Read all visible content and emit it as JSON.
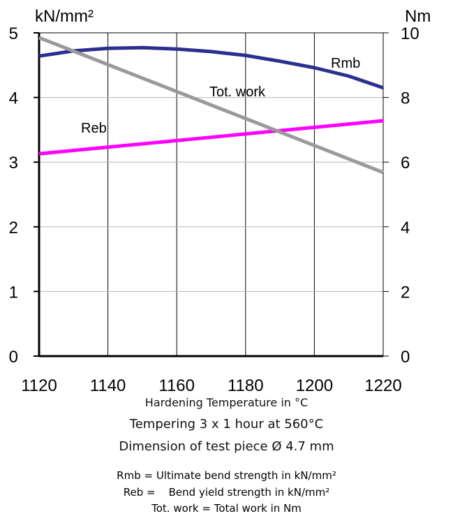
{
  "chart_data": {
    "type": "line",
    "xlabel": "Hardening Temperature in °C",
    "y_left_label": "kN/mm²",
    "y_right_label": "Nm",
    "xlim": [
      1120,
      1220
    ],
    "x_ticks": [
      1120,
      1140,
      1160,
      1180,
      1200,
      1220
    ],
    "ylim_left": [
      0,
      5
    ],
    "y_left_ticks": [
      0,
      1,
      2,
      3,
      4,
      5
    ],
    "ylim_right": [
      0,
      10
    ],
    "y_right_ticks": [
      0,
      2,
      4,
      6,
      8,
      10
    ],
    "grid": true,
    "series": [
      {
        "name": "Rmb",
        "axis": "left",
        "color": "#2b2f8f",
        "x": [
          1120,
          1130,
          1140,
          1150,
          1160,
          1170,
          1180,
          1190,
          1200,
          1210,
          1220
        ],
        "y": [
          4.64,
          4.72,
          4.76,
          4.77,
          4.75,
          4.71,
          4.65,
          4.56,
          4.46,
          4.33,
          4.15
        ]
      },
      {
        "name": "Reb",
        "axis": "left",
        "color": "#ff00ff",
        "x": [
          1120,
          1220
        ],
        "y": [
          3.13,
          3.64
        ]
      },
      {
        "name": "Tot. work",
        "axis": "right",
        "color": "#9a9a9a",
        "x": [
          1120,
          1220
        ],
        "y": [
          9.85,
          5.68
        ]
      }
    ]
  },
  "captions": {
    "tempering": "Tempering 3 x 1 hour at 560°C",
    "dimension": "Dimension of test piece Ø 4.7 mm"
  },
  "legend": [
    "Rmb = Ultimate bend strength in kN/mm²",
    "Reb =    Bend yield strength in kN/mm²",
    "Tot. work = Total work in Nm"
  ]
}
